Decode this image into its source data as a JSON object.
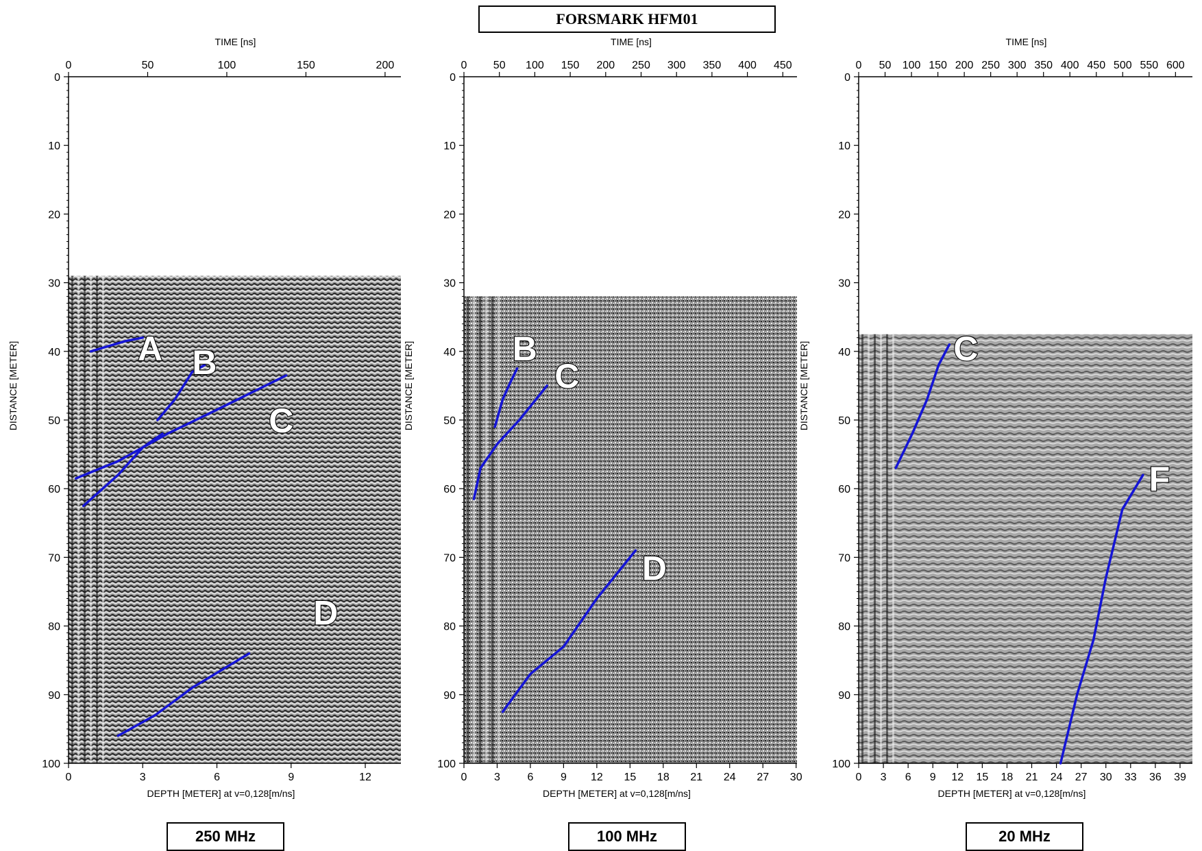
{
  "title": "FORSMARK HFM01",
  "panels": [
    {
      "frequency": "250 MHz",
      "top_axis_label": "TIME [ns]",
      "left_axis_label": "DISTANCE [METER]",
      "bottom_axis_label": "DEPTH [METER] at v=0,128[m/ns]",
      "time_ticks": [
        "0",
        "50",
        "100",
        "150",
        "200"
      ],
      "depth_ticks": [
        "0",
        "3",
        "6",
        "9",
        "12"
      ],
      "distance_ticks": [
        "0",
        "10",
        "20",
        "30",
        "40",
        "50",
        "60",
        "70",
        "80",
        "90",
        "100"
      ],
      "time_range": [
        0,
        210
      ],
      "depth_range": [
        0,
        13.44
      ],
      "data_start_distance": 29,
      "reflectors": [
        {
          "label": "A",
          "points": [
            [
              0.9,
              40
            ],
            [
              2.3,
              38.5
            ],
            [
              3.0,
              38
            ]
          ]
        },
        {
          "label": "B",
          "points": [
            [
              3.6,
              50
            ],
            [
              4.3,
              47
            ],
            [
              5.0,
              43
            ],
            [
              5.5,
              42
            ]
          ]
        },
        {
          "label": "C",
          "points": [
            [
              0.3,
              58.5
            ],
            [
              2,
              56
            ],
            [
              4,
              52
            ],
            [
              6,
              48.5
            ],
            [
              8.8,
              43.5
            ]
          ]
        },
        {
          "label": "C",
          "points": [
            [
              0.6,
              62.5
            ],
            [
              2,
              58
            ],
            [
              3,
              54
            ],
            [
              3.8,
              52
            ]
          ]
        },
        {
          "label": "D",
          "points": [
            [
              2.0,
              96
            ],
            [
              3.5,
              93
            ],
            [
              5,
              89
            ],
            [
              7.3,
              84
            ]
          ]
        }
      ],
      "labels": [
        {
          "text": "A",
          "depth": 3.3,
          "distance": 39.5
        },
        {
          "text": "B",
          "depth": 5.5,
          "distance": 41.5
        },
        {
          "text": "C",
          "depth": 8.6,
          "distance": 50
        },
        {
          "text": "D",
          "depth": 10.4,
          "distance": 78
        }
      ]
    },
    {
      "frequency": "100 MHz",
      "top_axis_label": "TIME [ns]",
      "left_axis_label": "DISTANCE [METER]",
      "bottom_axis_label": "DEPTH [METER] at v=0,128[m/ns]",
      "time_ticks": [
        "0",
        "50",
        "100",
        "150",
        "200",
        "250",
        "300",
        "350",
        "400",
        "450"
      ],
      "depth_ticks": [
        "0",
        "3",
        "6",
        "9",
        "12",
        "15",
        "18",
        "21",
        "24",
        "27",
        "30"
      ],
      "distance_ticks": [
        "0",
        "10",
        "20",
        "30",
        "40",
        "50",
        "60",
        "70",
        "80",
        "90",
        "100"
      ],
      "time_range": [
        0,
        470
      ],
      "depth_range": [
        0,
        30.08
      ],
      "data_start_distance": 32,
      "reflectors": [
        {
          "label": "B",
          "points": [
            [
              2.8,
              51
            ],
            [
              3.5,
              47
            ],
            [
              4.2,
              44.5
            ],
            [
              4.8,
              42.5
            ]
          ]
        },
        {
          "label": "C",
          "points": [
            [
              0.9,
              61.5
            ],
            [
              1.5,
              57
            ],
            [
              3,
              53.5
            ],
            [
              5,
              50
            ],
            [
              7.5,
              45
            ]
          ]
        },
        {
          "label": "D",
          "points": [
            [
              3.5,
              92.5
            ],
            [
              6,
              87
            ],
            [
              9,
              83
            ],
            [
              12,
              76
            ],
            [
              15.5,
              69
            ]
          ]
        }
      ],
      "labels": [
        {
          "text": "B",
          "depth": 5.5,
          "distance": 39.5
        },
        {
          "text": "C",
          "depth": 9.3,
          "distance": 43.5
        },
        {
          "text": "D",
          "depth": 17.2,
          "distance": 71.5
        }
      ]
    },
    {
      "frequency": "20 MHz",
      "top_axis_label": "TIME [ns]",
      "left_axis_label": "DISTANCE [METER]",
      "bottom_axis_label": "DEPTH [METER] at v=0,128[m/ns]",
      "time_ticks": [
        "0",
        "50",
        "100",
        "150",
        "200",
        "250",
        "300",
        "350",
        "400",
        "450",
        "500",
        "550",
        "600"
      ],
      "depth_ticks": [
        "0",
        "3",
        "6",
        "9",
        "12",
        "15",
        "18",
        "21",
        "24",
        "27",
        "30",
        "33",
        "36",
        "39"
      ],
      "distance_ticks": [
        "0",
        "10",
        "20",
        "30",
        "40",
        "50",
        "60",
        "70",
        "80",
        "90",
        "100"
      ],
      "time_range": [
        0,
        632
      ],
      "depth_range": [
        0,
        40.5
      ],
      "data_start_distance": 37.5,
      "reflectors": [
        {
          "label": "C",
          "points": [
            [
              4.5,
              57
            ],
            [
              6.5,
              52
            ],
            [
              8.3,
              47
            ],
            [
              9.7,
              42
            ],
            [
              11,
              39
            ]
          ]
        },
        {
          "label": "F",
          "points": [
            [
              24.5,
              100
            ],
            [
              26.5,
              90
            ],
            [
              28.5,
              82
            ],
            [
              30,
              73
            ],
            [
              32,
              63
            ],
            [
              34.5,
              58
            ]
          ]
        }
      ],
      "labels": [
        {
          "text": "C",
          "depth": 13,
          "distance": 39.5
        },
        {
          "text": "F",
          "depth": 36.5,
          "distance": 58.5
        }
      ]
    }
  ],
  "colors": {
    "reflector": "#1515d6",
    "frame": "#000000"
  }
}
